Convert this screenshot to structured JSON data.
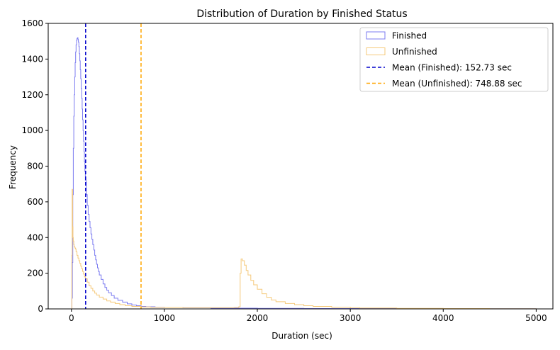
{
  "chart_data": {
    "type": "histogram",
    "title": "Distribution of Duration by Finished Status",
    "xlabel": "Duration (sec)",
    "ylabel": "Frequency",
    "xlim": [
      -250,
      5180
    ],
    "ylim": [
      0,
      1600
    ],
    "xticks": [
      0,
      1000,
      2000,
      3000,
      4000,
      5000
    ],
    "yticks": [
      0,
      200,
      400,
      600,
      800,
      1000,
      1200,
      1400,
      1600
    ],
    "legend_position": "top-right",
    "grid": false,
    "series": [
      {
        "name": "Finished",
        "color": "#7b7bf0",
        "points": [
          [
            0,
            0
          ],
          [
            5,
            60
          ],
          [
            10,
            260
          ],
          [
            15,
            640
          ],
          [
            20,
            900
          ],
          [
            25,
            1080
          ],
          [
            30,
            1200
          ],
          [
            35,
            1300
          ],
          [
            40,
            1380
          ],
          [
            45,
            1440
          ],
          [
            50,
            1480
          ],
          [
            55,
            1505
          ],
          [
            60,
            1515
          ],
          [
            65,
            1520
          ],
          [
            70,
            1510
          ],
          [
            75,
            1495
          ],
          [
            80,
            1470
          ],
          [
            85,
            1430
          ],
          [
            90,
            1390
          ],
          [
            95,
            1340
          ],
          [
            100,
            1290
          ],
          [
            105,
            1235
          ],
          [
            110,
            1180
          ],
          [
            115,
            1120
          ],
          [
            120,
            1060
          ],
          [
            125,
            1000
          ],
          [
            130,
            940
          ],
          [
            135,
            880
          ],
          [
            140,
            825
          ],
          [
            145,
            770
          ],
          [
            150,
            720
          ],
          [
            160,
            640
          ],
          [
            170,
            580
          ],
          [
            180,
            530
          ],
          [
            190,
            490
          ],
          [
            200,
            455
          ],
          [
            210,
            420
          ],
          [
            220,
            390
          ],
          [
            230,
            360
          ],
          [
            240,
            330
          ],
          [
            250,
            300
          ],
          [
            260,
            275
          ],
          [
            270,
            250
          ],
          [
            280,
            230
          ],
          [
            290,
            210
          ],
          [
            300,
            190
          ],
          [
            320,
            165
          ],
          [
            340,
            140
          ],
          [
            360,
            120
          ],
          [
            380,
            105
          ],
          [
            400,
            90
          ],
          [
            430,
            75
          ],
          [
            460,
            60
          ],
          [
            500,
            48
          ],
          [
            550,
            38
          ],
          [
            600,
            28
          ],
          [
            650,
            22
          ],
          [
            700,
            18
          ],
          [
            750,
            14
          ],
          [
            800,
            12
          ],
          [
            900,
            10
          ],
          [
            1000,
            8
          ],
          [
            1200,
            6
          ],
          [
            1500,
            4
          ],
          [
            2000,
            3
          ],
          [
            2500,
            2
          ],
          [
            3000,
            2
          ],
          [
            3500,
            1
          ],
          [
            4000,
            1
          ],
          [
            4500,
            1
          ],
          [
            5000,
            0
          ]
        ]
      },
      {
        "name": "Unfinished",
        "color": "#f5c97a",
        "points": [
          [
            0,
            0
          ],
          [
            4,
            300
          ],
          [
            8,
            670
          ],
          [
            12,
            460
          ],
          [
            16,
            400
          ],
          [
            20,
            380
          ],
          [
            25,
            360
          ],
          [
            30,
            350
          ],
          [
            35,
            345
          ],
          [
            40,
            340
          ],
          [
            45,
            335
          ],
          [
            50,
            320
          ],
          [
            60,
            300
          ],
          [
            70,
            285
          ],
          [
            80,
            270
          ],
          [
            90,
            255
          ],
          [
            100,
            240
          ],
          [
            110,
            225
          ],
          [
            120,
            210
          ],
          [
            130,
            195
          ],
          [
            140,
            180
          ],
          [
            150,
            170
          ],
          [
            170,
            150
          ],
          [
            190,
            130
          ],
          [
            210,
            115
          ],
          [
            230,
            100
          ],
          [
            250,
            88
          ],
          [
            270,
            78
          ],
          [
            300,
            66
          ],
          [
            340,
            55
          ],
          [
            380,
            45
          ],
          [
            420,
            38
          ],
          [
            470,
            30
          ],
          [
            520,
            24
          ],
          [
            580,
            18
          ],
          [
            650,
            14
          ],
          [
            750,
            11
          ],
          [
            850,
            9
          ],
          [
            1000,
            8
          ],
          [
            1200,
            7
          ],
          [
            1400,
            7
          ],
          [
            1600,
            7
          ],
          [
            1750,
            8
          ],
          [
            1800,
            12
          ],
          [
            1815,
            200
          ],
          [
            1825,
            280
          ],
          [
            1840,
            270
          ],
          [
            1860,
            245
          ],
          [
            1880,
            215
          ],
          [
            1900,
            190
          ],
          [
            1930,
            160
          ],
          [
            1960,
            135
          ],
          [
            2000,
            110
          ],
          [
            2050,
            85
          ],
          [
            2100,
            65
          ],
          [
            2150,
            50
          ],
          [
            2200,
            40
          ],
          [
            2300,
            30
          ],
          [
            2400,
            24
          ],
          [
            2500,
            18
          ],
          [
            2600,
            14
          ],
          [
            2800,
            10
          ],
          [
            3000,
            7
          ],
          [
            3100,
            5
          ],
          [
            3500,
            3
          ],
          [
            4000,
            2
          ],
          [
            4500,
            1
          ],
          [
            5000,
            0
          ]
        ]
      }
    ],
    "mean_lines": [
      {
        "label": "Mean (Finished): 152.73 sec",
        "x": 152.73,
        "color": "#0000cc",
        "style": "dashed"
      },
      {
        "label": "Mean (Unfinished): 748.88 sec",
        "x": 748.88,
        "color": "#ffa500",
        "style": "dashed"
      }
    ]
  }
}
